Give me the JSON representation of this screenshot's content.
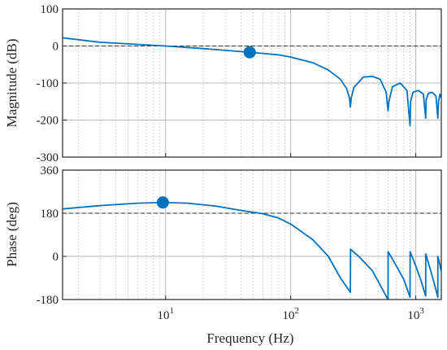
{
  "chart_data": [
    {
      "type": "line",
      "name": "magnitude",
      "ylabel": "Magnitude (dB)",
      "xlabel": "",
      "xscale": "log",
      "xlim": [
        1.5,
        1600
      ],
      "ylim": [
        -300,
        100
      ],
      "yticks": [
        100,
        0,
        -100,
        -200,
        -300
      ],
      "xticks_major": [
        10,
        100,
        1000
      ],
      "grid": "on",
      "reference_line": 0,
      "series": [
        {
          "color": "#0072bd",
          "x": [
            1.5,
            3,
            10,
            20,
            47,
            60,
            80,
            100,
            150,
            200,
            250,
            280,
            295,
            300,
            305,
            320,
            380,
            450,
            520,
            580,
            600,
            610,
            650,
            750,
            850,
            900,
            910,
            950,
            1050,
            1150,
            1200,
            1210,
            1260,
            1350,
            1450,
            1500,
            1520,
            1560,
            1600
          ],
          "y": [
            22,
            10,
            0,
            -7,
            -17,
            -20,
            -24,
            -30,
            -45,
            -65,
            -90,
            -115,
            -140,
            -165,
            -140,
            -112,
            -84,
            -82,
            -90,
            -125,
            -175,
            -150,
            -110,
            -100,
            -120,
            -215,
            -150,
            -125,
            -120,
            -130,
            -195,
            -145,
            -128,
            -125,
            -135,
            -195,
            -150,
            -130,
            -140
          ]
        }
      ],
      "marker": {
        "x": 47,
        "y": -17
      }
    },
    {
      "type": "line",
      "name": "phase",
      "ylabel": "Phase (deg)",
      "xlabel": "Frequency (Hz)",
      "xscale": "log",
      "xlim": [
        1.5,
        1600
      ],
      "ylim": [
        -180,
        360
      ],
      "yticks": [
        360,
        180,
        0,
        -180
      ],
      "xticks_major": [
        10,
        100,
        1000
      ],
      "xtick_labels": [
        {
          "base": "10",
          "exp": "1"
        },
        {
          "base": "10",
          "exp": "2"
        },
        {
          "base": "10",
          "exp": "3"
        }
      ],
      "grid": "on",
      "reference_line": 180,
      "series": [
        {
          "color": "#0072bd",
          "x": [
            1.5,
            3,
            6,
            9.5,
            15,
            25,
            40,
            60,
            80,
            100,
            150,
            200,
            250,
            300,
            301,
            350,
            450,
            600,
            601,
            700,
            800,
            900,
            901,
            1000,
            1100,
            1200,
            1201,
            1300,
            1400,
            1500,
            1501,
            1600
          ],
          "y": [
            198,
            212,
            222,
            225,
            222,
            210,
            192,
            178,
            160,
            135,
            70,
            0,
            -90,
            -150,
            30,
            0,
            -60,
            -180,
            20,
            -40,
            -95,
            -170,
            20,
            -40,
            -100,
            -165,
            10,
            -50,
            -110,
            -170,
            0,
            -60
          ]
        }
      ],
      "marker": {
        "x": 9.5,
        "y": 225
      }
    }
  ]
}
